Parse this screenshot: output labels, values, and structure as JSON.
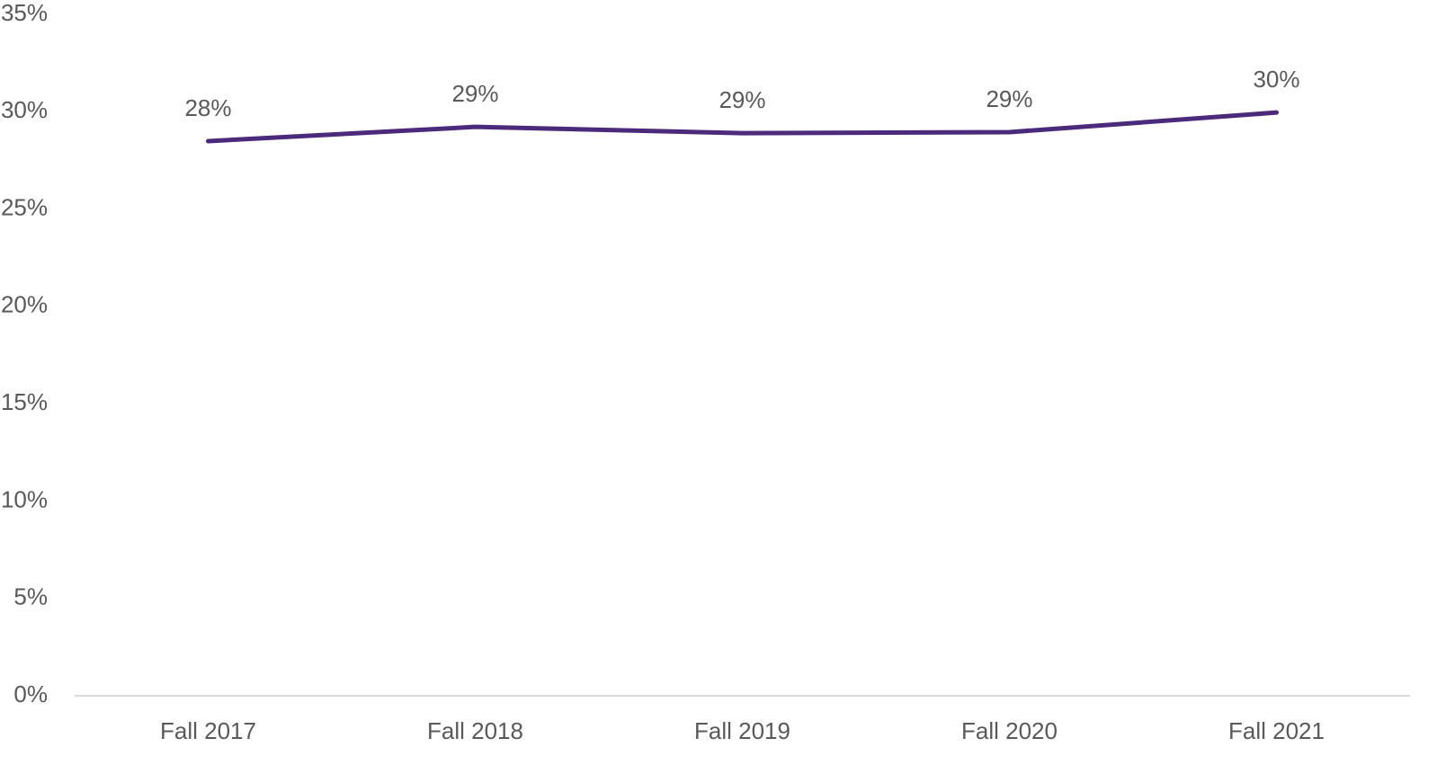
{
  "chart_data": {
    "type": "line",
    "categories": [
      "Fall 2017",
      "Fall 2018",
      "Fall 2019",
      "Fall 2020",
      "Fall 2021"
    ],
    "series": [
      {
        "color": "#4b2a7b",
        "values": [
          28.49,
          29.22,
          28.9,
          28.95,
          29.96
        ],
        "value_labels": [
          "28%",
          "29%",
          "29%",
          "29%",
          "30%"
        ]
      }
    ],
    "ylim": [
      0,
      35
    ],
    "yticks": [
      {
        "value": 0,
        "label": "0%"
      },
      {
        "value": 5,
        "label": "5%"
      },
      {
        "value": 10,
        "label": "10%"
      },
      {
        "value": 15,
        "label": "15%"
      },
      {
        "value": 20,
        "label": "20%"
      },
      {
        "value": 25,
        "label": "25%"
      },
      {
        "value": 30,
        "label": "30%"
      },
      {
        "value": 35,
        "label": "35%"
      }
    ],
    "grid": false
  }
}
